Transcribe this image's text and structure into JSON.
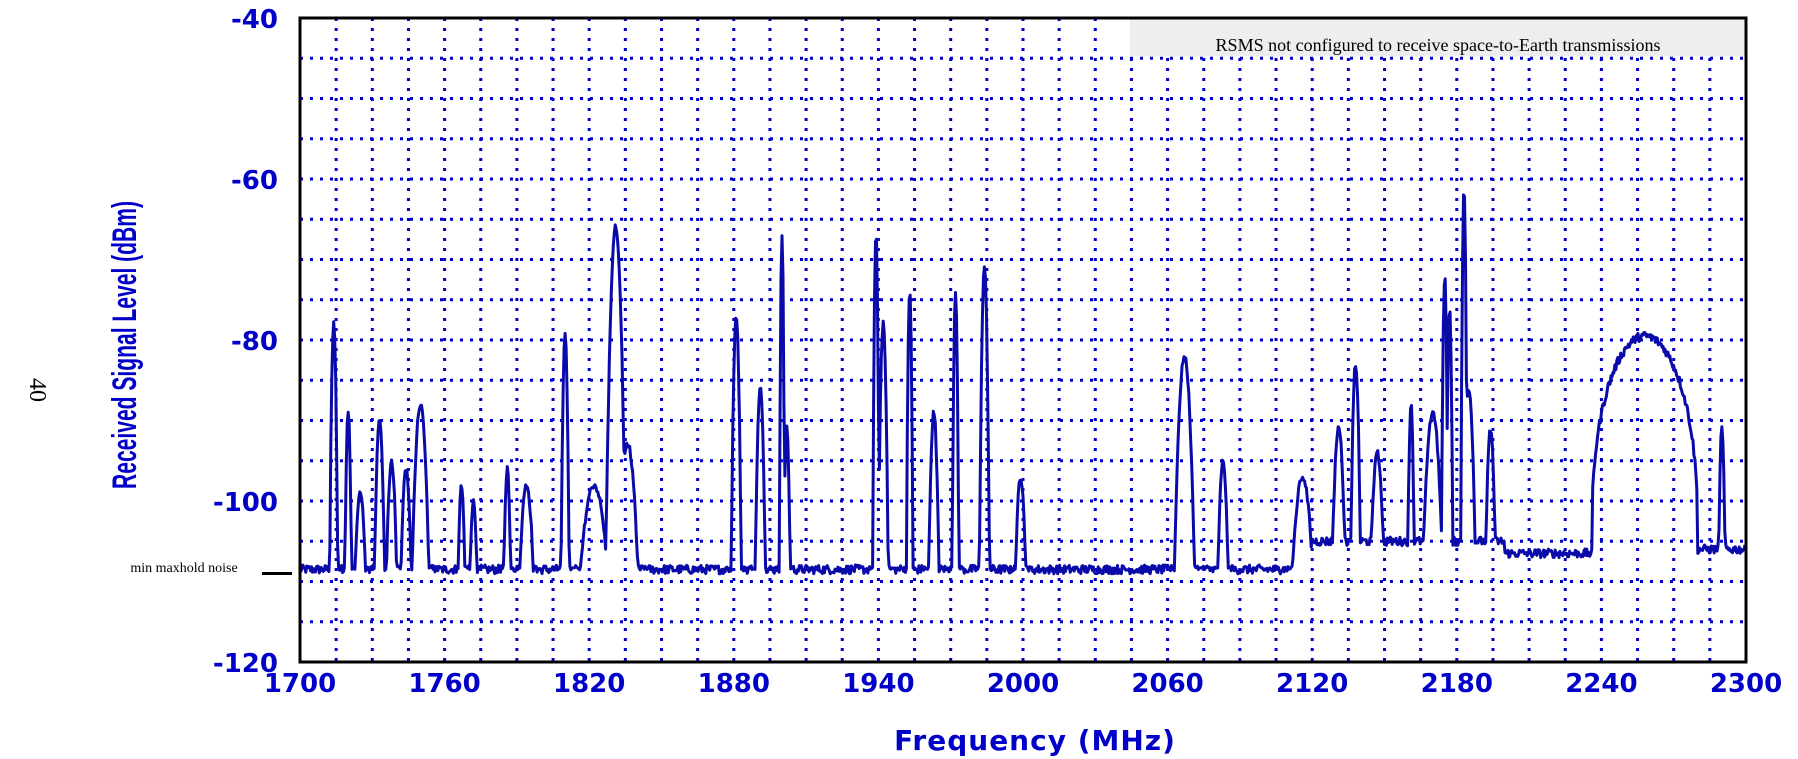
{
  "page_number": "40",
  "colors": {
    "trace": "#0a0aaa",
    "text": "#0000c8",
    "grid": "#0000c8",
    "axes": "#000000",
    "note_bg": "#eeeeee"
  },
  "chart_data": {
    "type": "line",
    "title": "",
    "xlabel": "Frequency (MHz)",
    "ylabel": "Received Signal Level (dBm)",
    "xlim": [
      1700,
      2300
    ],
    "ylim": [
      -120,
      -40
    ],
    "x_ticks": [
      1700,
      1760,
      1820,
      1880,
      1940,
      2000,
      2060,
      2120,
      2180,
      2240,
      2300
    ],
    "y_ticks": [
      -40,
      -60,
      -80,
      -100,
      -120
    ],
    "x_tick_labels": [
      "1700",
      "1760",
      "1820",
      "1880",
      "1940",
      "2000",
      "2060",
      "2120",
      "2180",
      "2240",
      "2300"
    ],
    "y_tick_labels": [
      "-40",
      "-60",
      "-80",
      "-100",
      "-120"
    ],
    "grid": true,
    "annotation": "RSMS not configured to receive space-to-Earth transmissions",
    "reference_line": {
      "label": "min maxhold noise",
      "y": -109
    },
    "noise_floor": -108.5,
    "peaks": [
      {
        "f": 1714,
        "level": -78,
        "width": 1.2
      },
      {
        "f": 1720,
        "level": -89,
        "width": 1.0
      },
      {
        "f": 1725,
        "level": -99,
        "width": 1.5
      },
      {
        "f": 1733,
        "level": -90,
        "width": 1.5
      },
      {
        "f": 1738,
        "level": -95,
        "width": 1.5
      },
      {
        "f": 1744,
        "level": -96,
        "width": 1.5
      },
      {
        "f": 1750,
        "level": -88,
        "width": 2.5
      },
      {
        "f": 1767,
        "level": -98,
        "width": 1.0
      },
      {
        "f": 1772,
        "level": -100,
        "width": 1.0
      },
      {
        "f": 1786,
        "level": -96,
        "width": 1.0
      },
      {
        "f": 1794,
        "level": -98,
        "width": 2.0
      },
      {
        "f": 1810,
        "level": -79,
        "width": 1.2
      },
      {
        "f": 1822,
        "level": -98,
        "width": 4.0
      },
      {
        "f": 1831,
        "level": -66,
        "width": 3.0
      },
      {
        "f": 1836,
        "level": -93,
        "width": 3.0
      },
      {
        "f": 1881,
        "level": -77,
        "width": 1.5
      },
      {
        "f": 1891,
        "level": -86,
        "width": 1.5
      },
      {
        "f": 1900,
        "level": -67,
        "width": 0.8
      },
      {
        "f": 1902,
        "level": -91,
        "width": 1.0
      },
      {
        "f": 1939,
        "level": -67,
        "width": 1.0
      },
      {
        "f": 1942,
        "level": -78,
        "width": 1.5
      },
      {
        "f": 1953,
        "level": -74,
        "width": 1.0
      },
      {
        "f": 1963,
        "level": -89,
        "width": 1.5
      },
      {
        "f": 1972,
        "level": -74,
        "width": 1.0
      },
      {
        "f": 1984,
        "level": -71,
        "width": 1.5
      },
      {
        "f": 1999,
        "level": -97,
        "width": 1.5
      },
      {
        "f": 2067,
        "level": -82,
        "width": 3.0
      },
      {
        "f": 2083,
        "level": -95,
        "width": 1.5
      },
      {
        "f": 2116,
        "level": -97,
        "width": 3.0
      },
      {
        "f": 2131,
        "level": -91,
        "width": 2.0
      },
      {
        "f": 2138,
        "level": -83,
        "width": 1.5
      },
      {
        "f": 2147,
        "level": -94,
        "width": 2.0
      },
      {
        "f": 2161,
        "level": -88,
        "width": 1.0
      },
      {
        "f": 2170,
        "level": -89,
        "width": 3.0
      },
      {
        "f": 2175,
        "level": -72,
        "width": 1.0
      },
      {
        "f": 2177,
        "level": -76,
        "width": 1.0
      },
      {
        "f": 2183,
        "level": -61,
        "width": 1.0
      },
      {
        "f": 2185,
        "level": -86,
        "width": 2.0
      },
      {
        "f": 2194,
        "level": -91,
        "width": 1.5
      },
      {
        "f": 2290,
        "level": -91,
        "width": 1.0
      }
    ],
    "plateaus": [
      {
        "start": 2120,
        "end": 2200,
        "level": -105
      },
      {
        "start": 2200,
        "end": 2236,
        "level": -106.5
      },
      {
        "start": 2278,
        "end": 2300,
        "level": -106
      }
    ],
    "humps": [
      {
        "start": 2236,
        "end": 2280,
        "top": -79.5
      }
    ]
  }
}
